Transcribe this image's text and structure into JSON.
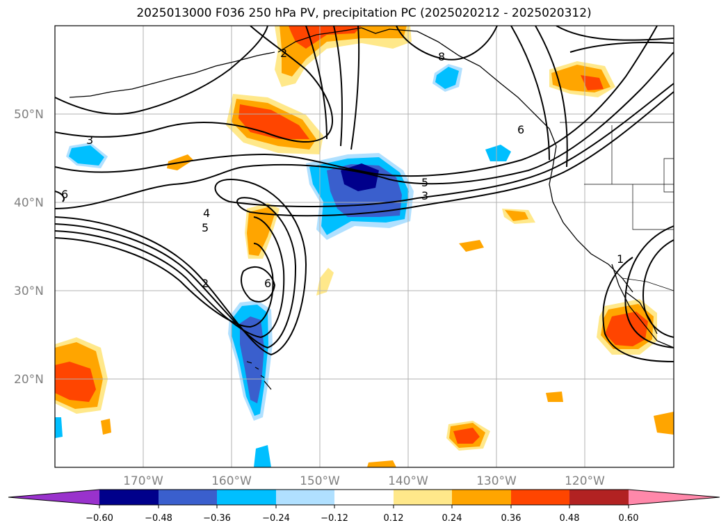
{
  "title": "2025013000 F036 250 hPa PV, precipitation PC (2025020212 - 2025020312)",
  "map": {
    "lat_labels": [
      "50°N",
      "40°N",
      "30°N",
      "20°N"
    ],
    "lon_labels": [
      "170°W",
      "160°W",
      "150°W",
      "140°W",
      "130°W",
      "120°W"
    ],
    "gridlines": true
  },
  "colorbar": {
    "ticks": [
      "−0.60",
      "−0.48",
      "−0.36",
      "−0.24",
      "−0.12",
      "0.12",
      "0.24",
      "0.36",
      "0.48",
      "0.60"
    ],
    "colors": [
      "#9932cc",
      "#00008b",
      "#3a5fcd",
      "#00bfff",
      "#b0e0ff",
      "#ffffff",
      "#ffe88a",
      "#ffa500",
      "#ff4500",
      "#b22222",
      "#ff88aa"
    ],
    "extend": "both"
  },
  "pv_contour_labels": [
    "3",
    "4",
    "5",
    "2",
    "6",
    "5",
    "3",
    "8",
    "6",
    "1",
    "2",
    "6"
  ],
  "colors": {
    "red": "#ff4500",
    "orange": "#ffa500",
    "yellow": "#ffe88a",
    "cyan": "#00bfff",
    "lightblue": "#b0e0ff",
    "blue": "#3a5fcd",
    "navy": "#00008b"
  }
}
